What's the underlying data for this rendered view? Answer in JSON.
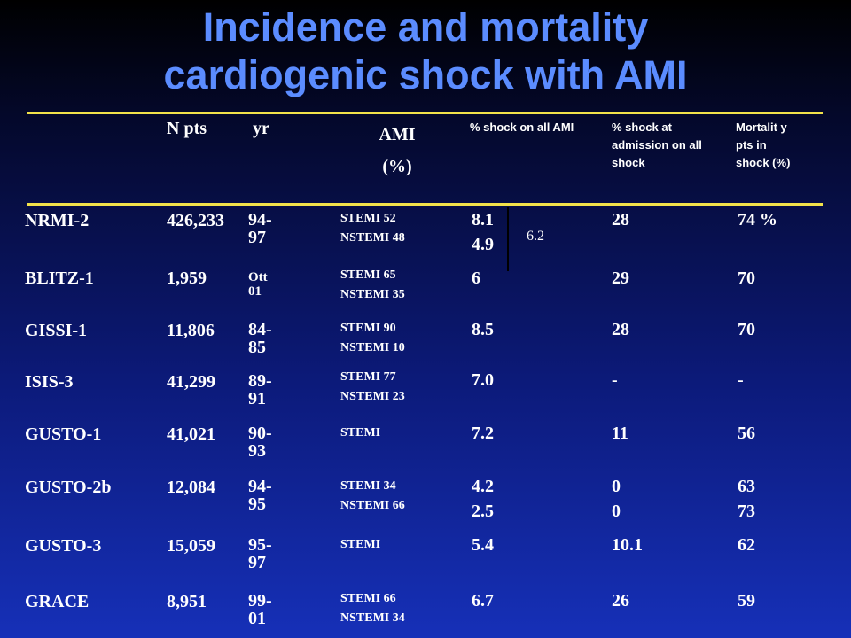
{
  "title": {
    "line1": "Incidence and mortality",
    "line2": "cardiogenic shock with AMI"
  },
  "table": {
    "headers": {
      "n_pts": "N pts",
      "yr": "yr",
      "ami_line1": "AMI",
      "ami_line2": "(%)",
      "shock_all": "% shock on all AMI",
      "shock_admission": "% shock at admission on all shock",
      "mortality": "Mortalit y pts in shock (%)"
    },
    "pooled_value": "6.2",
    "rows": [
      {
        "study": "NRMI-2",
        "n": "426,233",
        "yr1": "94-",
        "yr2": "97",
        "ami1": "STEMI 52",
        "ami2": "NSTEMI 48",
        "shock1": "8.1",
        "shock2": "4.9",
        "adm1": "28",
        "adm2": "",
        "mort1": "74 %",
        "mort2": ""
      },
      {
        "study": "BLITZ-1",
        "n": "1,959",
        "yr1": "Ott",
        "yr2": "01",
        "ami1": "STEMI 65",
        "ami2": "NSTEMI 35",
        "shock1": "6",
        "shock2": "",
        "adm1": "29",
        "adm2": "",
        "mort1": "70",
        "mort2": ""
      },
      {
        "study": "GISSI-1",
        "n": "11,806",
        "yr1": "84-",
        "yr2": "85",
        "ami1": "STEMI 90",
        "ami2": "NSTEMI 10",
        "shock1": "8.5",
        "shock2": "",
        "adm1": "28",
        "adm2": "",
        "mort1": "70",
        "mort2": ""
      },
      {
        "study": "ISIS-3",
        "n": "41,299",
        "yr1": "89-",
        "yr2": "91",
        "ami1": "STEMI 77",
        "ami2": "NSTEMI 23",
        "shock1": "7.0",
        "shock2": "",
        "adm1": "-",
        "adm2": "",
        "mort1": "-",
        "mort2": ""
      },
      {
        "study": "GUSTO-1",
        "n": "41,021",
        "yr1": "90-",
        "yr2": "93",
        "ami1": "STEMI",
        "ami2": "",
        "shock1": "7.2",
        "shock2": "",
        "adm1": "11",
        "adm2": "",
        "mort1": "56",
        "mort2": ""
      },
      {
        "study": "GUSTO-2b",
        "n": "12,084",
        "yr1": "94-",
        "yr2": "95",
        "ami1": "STEMI 34",
        "ami2": "NSTEMI 66",
        "shock1": "4.2",
        "shock2": "2.5",
        "adm1": "0",
        "adm2": "0",
        "mort1": "63",
        "mort2": "73"
      },
      {
        "study": "GUSTO-3",
        "n": "15,059",
        "yr1": "95-",
        "yr2": "97",
        "ami1": "STEMI",
        "ami2": "",
        "shock1": "5.4",
        "shock2": "",
        "adm1": "10.1",
        "adm2": "",
        "mort1": "62",
        "mort2": ""
      },
      {
        "study": "GRACE",
        "n": "8,951",
        "yr1": "99-",
        "yr2": "01",
        "ami1": "STEMI 66",
        "ami2": "NSTEMI 34",
        "shock1": "6.7",
        "shock2": "",
        "adm1": "26",
        "adm2": "",
        "mort1": "59",
        "mort2": ""
      }
    ]
  }
}
